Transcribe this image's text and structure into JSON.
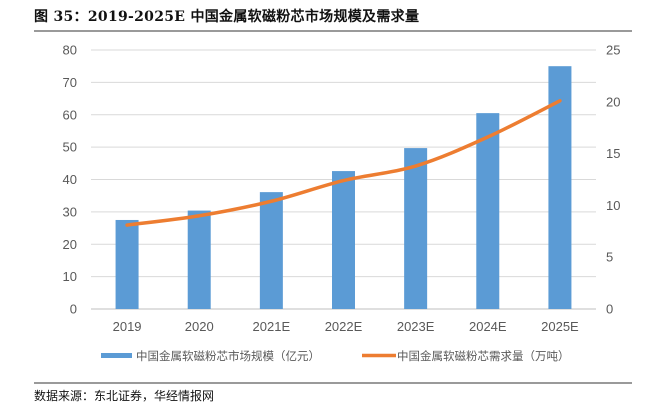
{
  "header": {
    "title": "图 35：2019-2025E 中国金属软磁粉芯市场规模及需求量"
  },
  "footer": {
    "source": "数据来源：东北证券，华经情报网"
  },
  "chart_data": {
    "type": "bar",
    "title": "2019-2025E 中国金属软磁粉芯市场规模及需求量",
    "categories": [
      "2019",
      "2020",
      "2021E",
      "2022E",
      "2023E",
      "2024E",
      "2025E"
    ],
    "series": [
      {
        "name": "中国金属软磁粉芯市场规模（亿元）",
        "type": "bar",
        "axis": "left",
        "color": "#5B9BD5",
        "values": [
          27.5,
          30.4,
          36.1,
          42.6,
          49.7,
          60.5,
          75.0
        ]
      },
      {
        "name": "中国金属软磁粉芯需求量（万吨）",
        "type": "line",
        "axis": "right",
        "color": "#ED7D31",
        "values": [
          8.1,
          9.0,
          10.4,
          12.4,
          13.8,
          16.6,
          20.1
        ]
      }
    ],
    "y_left": {
      "min": 0,
      "max": 80,
      "step": 10,
      "ticks": [
        "0",
        "10",
        "20",
        "30",
        "40",
        "50",
        "60",
        "70",
        "80"
      ]
    },
    "y_right": {
      "min": 0,
      "max": 25,
      "step": 5,
      "ticks": [
        "0",
        "5",
        "10",
        "15",
        "20",
        "25"
      ]
    },
    "xlabel": "",
    "ylabel": "",
    "grid": true,
    "legend": "bottom"
  }
}
